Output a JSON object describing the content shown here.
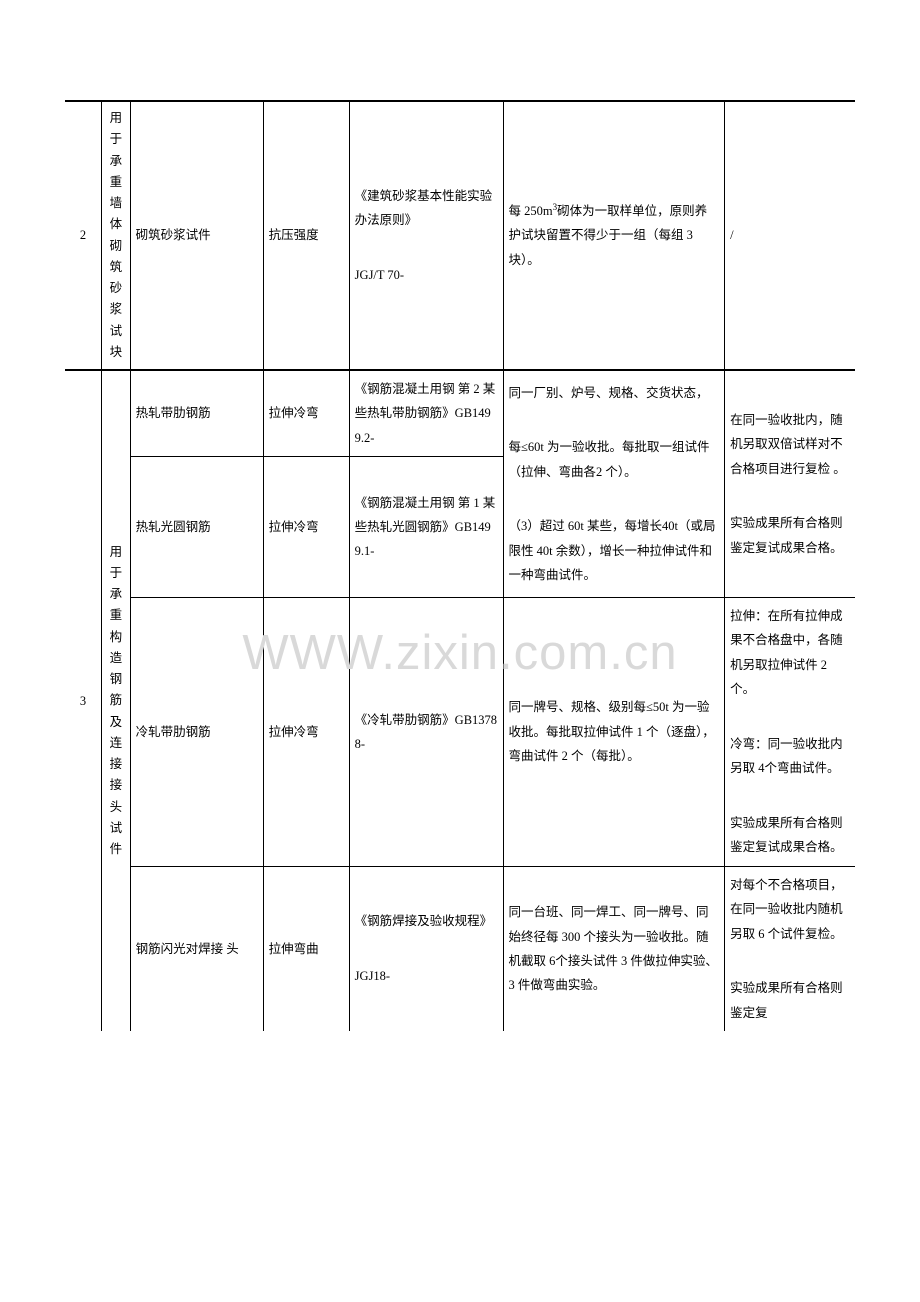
{
  "watermark": "WWW.zixin.com.cn",
  "row2": {
    "num": "2",
    "cat": "用于承重墙体砌筑砂浆试块",
    "name": "砌筑砂浆试件",
    "test": "抗压强度",
    "std": "《建筑砂浆基本性能实验办法原则》",
    "std2": "JGJ/T 70-",
    "rule_a": "每 250m",
    "rule_b": "砌体为一取样单位，原则养护试块留置不得少于一组（每组 3 块）。",
    "note": "/"
  },
  "row3": {
    "num": "3",
    "cat": "用于承重构造钢筋及连接接头试件",
    "r1": {
      "name": "热轧带肋钢筋",
      "test": "拉伸冷弯",
      "std": "《钢筋混凝土用钢  第 2 某些热轧带肋钢筋》GB1499.2-"
    },
    "r2": {
      "name": "热轧光圆钢筋",
      "test": "拉伸冷弯",
      "std": "《钢筋混凝土用钢  第 1 某些热轧光圆钢筋》GB1499.1-"
    },
    "rule12a": "同一厂别、炉号、规格、交货状态，",
    "rule12b": "每≤60t 为一验收批。每批取一组试件（拉伸、弯曲各2 个）。",
    "rule12c": "（3）超过 60t 某些，每增长40t（或局限性 40t 余数），增长一种拉伸试件和一种弯曲试件。",
    "note12a": "在同一验收批内，随机另取双倍试样对不合格项目进行复检 。",
    "note12b": "实验成果所有合格则鉴定复试成果合格。",
    "r3": {
      "name": "冷轧带肋钢筋",
      "test": "拉伸冷弯",
      "std": "《冷轧带肋钢筋》GB13788-",
      "rule": "同一牌号、规格、级别每≤50t 为一验收批。每批取拉伸试件 1 个（逐盘），弯曲试件 2 个（每批）。",
      "note1": "拉伸：在所有拉伸成果不合格盘中，各随机另取拉伸试件 2 个。",
      "note2": "冷弯：同一验收批内另取 4个弯曲试件。",
      "note3": "实验成果所有合格则鉴定复试成果合格。"
    },
    "r4": {
      "name": "钢筋闪光对焊接 头",
      "test": "拉伸弯曲",
      "std1": "《钢筋焊接及验收规程》",
      "std2": "JGJ18-",
      "rule": "同一台班、同一焊工、同一牌号、同始终径每 300 个接头为一验收批。随机截取 6个接头试件 3 件做拉伸实验、3 件做弯曲实验。",
      "note1": "对每个不合格项目，在同一验收批内随机另取 6 个试件复检。",
      "note2": "实验成果所有合格则鉴定复"
    }
  }
}
